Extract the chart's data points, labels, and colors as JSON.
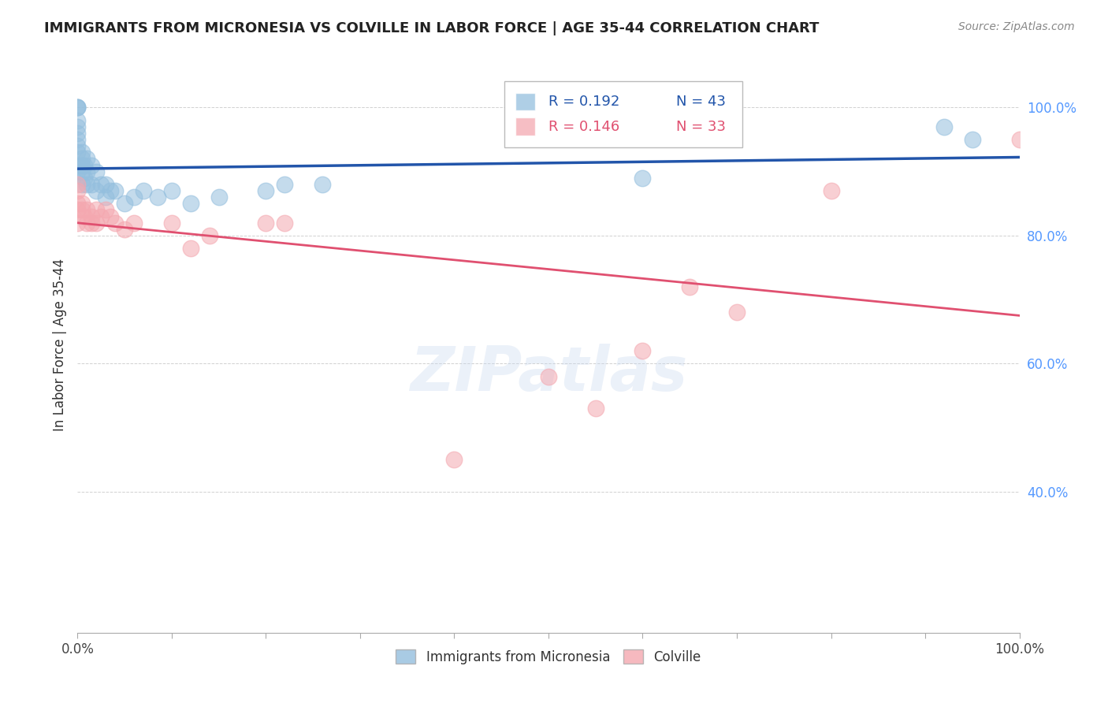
{
  "title": "IMMIGRANTS FROM MICRONESIA VS COLVILLE IN LABOR FORCE | AGE 35-44 CORRELATION CHART",
  "source_text": "Source: ZipAtlas.com",
  "ylabel": "In Labor Force | Age 35-44",
  "xlim": [
    0,
    1
  ],
  "ylim": [
    0.18,
    1.08
  ],
  "blue_label": "Immigrants from Micronesia",
  "pink_label": "Colville",
  "blue_R": "0.192",
  "blue_N": "43",
  "pink_R": "0.146",
  "pink_N": "33",
  "blue_color": "#94bfde",
  "pink_color": "#f4a8b0",
  "blue_line_color": "#2255aa",
  "pink_line_color": "#e05070",
  "xtick_labels": [
    "0.0%",
    "",
    "",
    "",
    "",
    "",
    "",
    "",
    "",
    "",
    "100.0%"
  ],
  "xtick_values": [
    0.0,
    0.1,
    0.2,
    0.3,
    0.4,
    0.5,
    0.6,
    0.7,
    0.8,
    0.9,
    1.0
  ],
  "ytick_labels": [
    "40.0%",
    "60.0%",
    "80.0%",
    "100.0%"
  ],
  "ytick_values": [
    0.4,
    0.6,
    0.8,
    1.0
  ],
  "blue_x": [
    0.0,
    0.0,
    0.0,
    0.0,
    0.0,
    0.0,
    0.0,
    0.0,
    0.0,
    0.0,
    0.0,
    0.005,
    0.005,
    0.005,
    0.005,
    0.005,
    0.007,
    0.007,
    0.01,
    0.01,
    0.01,
    0.015,
    0.015,
    0.02,
    0.02,
    0.025,
    0.03,
    0.03,
    0.035,
    0.04,
    0.05,
    0.06,
    0.07,
    0.085,
    0.1,
    0.12,
    0.15,
    0.2,
    0.22,
    0.26,
    0.6,
    0.92,
    0.95
  ],
  "blue_y": [
    1.0,
    1.0,
    1.0,
    0.98,
    0.97,
    0.96,
    0.95,
    0.94,
    0.93,
    0.91,
    0.9,
    0.93,
    0.92,
    0.91,
    0.9,
    0.88,
    0.91,
    0.89,
    0.92,
    0.9,
    0.88,
    0.91,
    0.88,
    0.9,
    0.87,
    0.88,
    0.88,
    0.86,
    0.87,
    0.87,
    0.85,
    0.86,
    0.87,
    0.86,
    0.87,
    0.85,
    0.86,
    0.87,
    0.88,
    0.88,
    0.89,
    0.97,
    0.95
  ],
  "pink_x": [
    0.0,
    0.0,
    0.0,
    0.0,
    0.0,
    0.005,
    0.005,
    0.007,
    0.01,
    0.01,
    0.015,
    0.015,
    0.02,
    0.02,
    0.025,
    0.03,
    0.035,
    0.04,
    0.05,
    0.06,
    0.1,
    0.12,
    0.14,
    0.2,
    0.22,
    0.4,
    0.5,
    0.55,
    0.6,
    0.65,
    0.7,
    0.8,
    1.0
  ],
  "pink_y": [
    0.88,
    0.87,
    0.85,
    0.84,
    0.82,
    0.85,
    0.84,
    0.83,
    0.84,
    0.82,
    0.83,
    0.82,
    0.84,
    0.82,
    0.83,
    0.84,
    0.83,
    0.82,
    0.81,
    0.82,
    0.82,
    0.78,
    0.8,
    0.82,
    0.82,
    0.45,
    0.58,
    0.53,
    0.62,
    0.72,
    0.68,
    0.87,
    0.95
  ]
}
